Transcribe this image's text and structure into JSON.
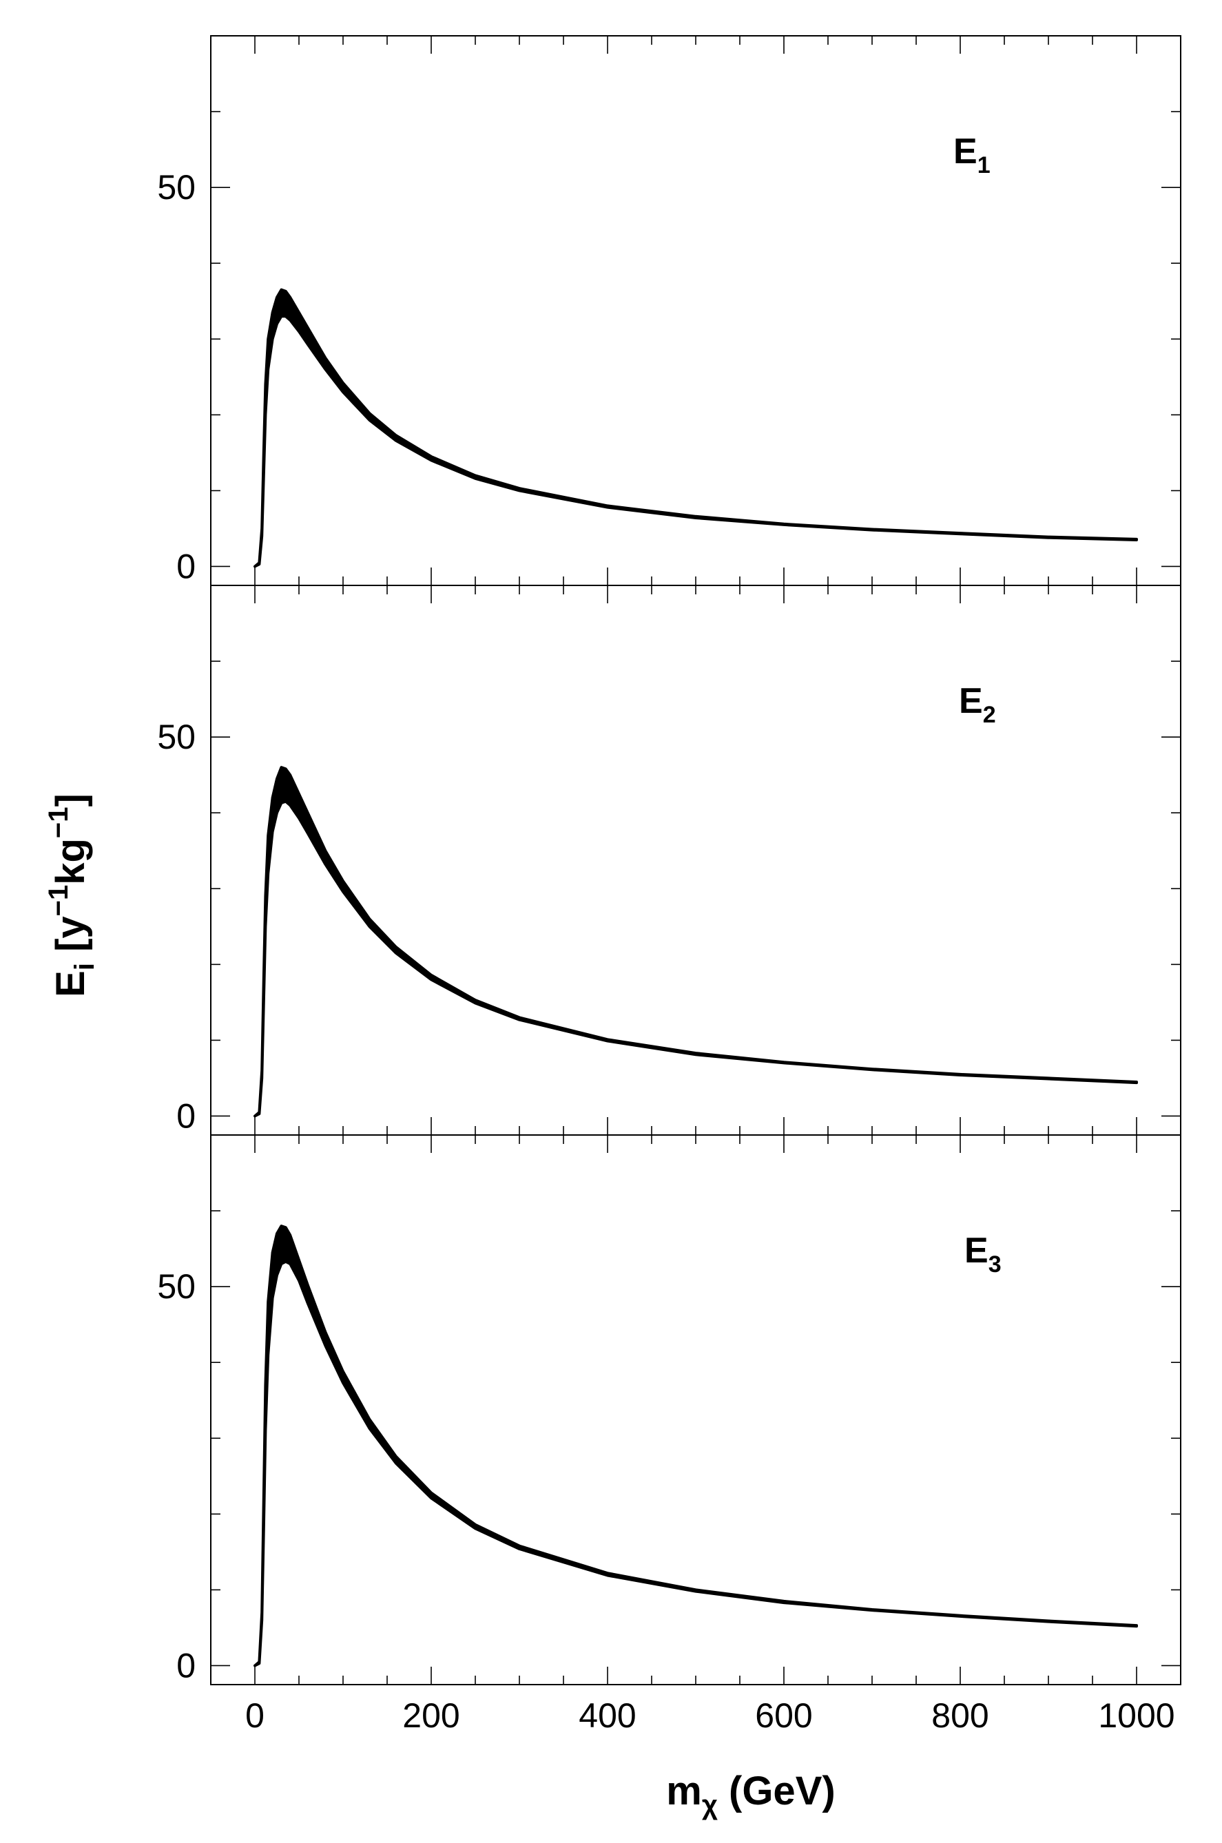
{
  "chart_data": {
    "type": "area",
    "ylabel": {
      "main": "E",
      "sub": "i",
      "bracket_open": " [y",
      "exp1": "−1",
      "mid": "kg",
      "exp2": "−1",
      "bracket_close": "]"
    },
    "xlabel": {
      "main": "m",
      "sub": "χ",
      "unit": " (GeV)"
    },
    "xlim": [
      -50,
      1050
    ],
    "xticks": [
      0,
      200,
      400,
      600,
      800,
      1000
    ],
    "panels": [
      {
        "label_main": "E",
        "label_sub": "1",
        "ylim": [
          -2.5,
          70
        ],
        "yticks": [
          0,
          50
        ],
        "band": {
          "x": [
            0,
            5,
            8,
            10,
            12,
            15,
            20,
            25,
            30,
            35,
            40,
            50,
            60,
            80,
            100,
            130,
            160,
            200,
            250,
            300,
            400,
            500,
            600,
            700,
            800,
            900,
            1000
          ],
          "upper": [
            0,
            0.5,
            5,
            15,
            24,
            30,
            33.5,
            35.5,
            36.5,
            36.3,
            35.5,
            33.5,
            31.5,
            27.5,
            24.2,
            20.2,
            17.3,
            14.5,
            12.0,
            10.3,
            8.0,
            6.6,
            5.6,
            4.9,
            4.4,
            3.9,
            3.6
          ],
          "lower": [
            0,
            0.3,
            4,
            12,
            20,
            26,
            30.0,
            32.0,
            33.0,
            33.0,
            32.5,
            31.0,
            29.3,
            26.0,
            23.0,
            19.3,
            16.6,
            14.0,
            11.6,
            10.0,
            7.8,
            6.4,
            5.5,
            4.8,
            4.3,
            3.8,
            3.5
          ]
        }
      },
      {
        "label_main": "E",
        "label_sub": "2",
        "ylim": [
          -2.5,
          70
        ],
        "yticks": [
          0,
          50
        ],
        "band": {
          "x": [
            0,
            5,
            8,
            10,
            12,
            15,
            20,
            25,
            30,
            35,
            40,
            50,
            60,
            80,
            100,
            130,
            160,
            200,
            250,
            300,
            400,
            500,
            600,
            700,
            800,
            900,
            1000
          ],
          "upper": [
            0,
            0.5,
            6,
            18,
            29,
            37,
            42.0,
            44.5,
            46.0,
            45.8,
            45.0,
            42.5,
            40.0,
            35.0,
            31.0,
            26.0,
            22.3,
            18.6,
            15.3,
            13.0,
            10.1,
            8.3,
            7.1,
            6.2,
            5.5,
            5.0,
            4.5
          ],
          "lower": [
            0,
            0.3,
            5,
            15,
            25,
            32,
            37.5,
            40.0,
            41.3,
            41.5,
            41.0,
            39.3,
            37.3,
            33.2,
            29.6,
            25.0,
            21.5,
            18.0,
            14.9,
            12.7,
            9.9,
            8.1,
            7.0,
            6.1,
            5.4,
            4.9,
            4.4
          ]
        }
      },
      {
        "label_main": "E",
        "label_sub": "3",
        "ylim": [
          -2.5,
          70
        ],
        "yticks": [
          0,
          50
        ],
        "band": {
          "x": [
            0,
            5,
            8,
            10,
            12,
            15,
            20,
            25,
            30,
            35,
            40,
            50,
            60,
            80,
            100,
            130,
            160,
            200,
            250,
            300,
            400,
            500,
            600,
            700,
            800,
            900,
            1000
          ],
          "upper": [
            0,
            0.5,
            7,
            22,
            37,
            48,
            54.5,
            57.0,
            58.0,
            57.8,
            56.8,
            53.5,
            50.2,
            44.0,
            38.8,
            32.5,
            27.6,
            22.8,
            18.6,
            15.8,
            12.2,
            10.0,
            8.5,
            7.4,
            6.6,
            5.9,
            5.3
          ],
          "lower": [
            0,
            0.3,
            6,
            18,
            31,
            41,
            48.5,
            51.5,
            53.0,
            53.3,
            53.0,
            50.8,
            47.8,
            42.2,
            37.3,
            31.3,
            26.7,
            22.1,
            18.1,
            15.4,
            11.9,
            9.8,
            8.3,
            7.3,
            6.5,
            5.8,
            5.2
          ]
        }
      }
    ]
  }
}
